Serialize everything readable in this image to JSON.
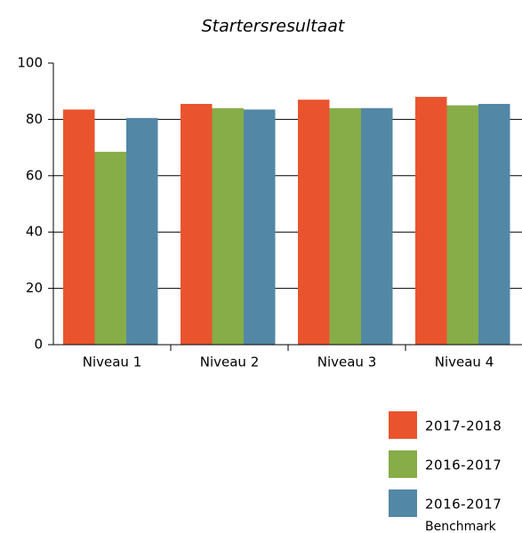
{
  "chart_data": {
    "type": "bar",
    "title": "Startersresultaat",
    "categories": [
      "Niveau 1",
      "Niveau 2",
      "Niveau 3",
      "Niveau 4"
    ],
    "series": [
      {
        "name": "2017-2018",
        "color": "#e9542f",
        "values": [
          83.5,
          85.5,
          87,
          88
        ]
      },
      {
        "name": "2016-2017",
        "color": "#86ad48",
        "values": [
          68.5,
          84,
          84,
          85
        ]
      },
      {
        "name": "2016-2017",
        "sublabel": "Benchmark",
        "color": "#5287a6",
        "values": [
          80.5,
          83.5,
          84,
          85.5
        ]
      }
    ],
    "ylim": [
      0,
      100
    ],
    "yticks": [
      0,
      20,
      40,
      60,
      80,
      100
    ],
    "grid": true
  }
}
